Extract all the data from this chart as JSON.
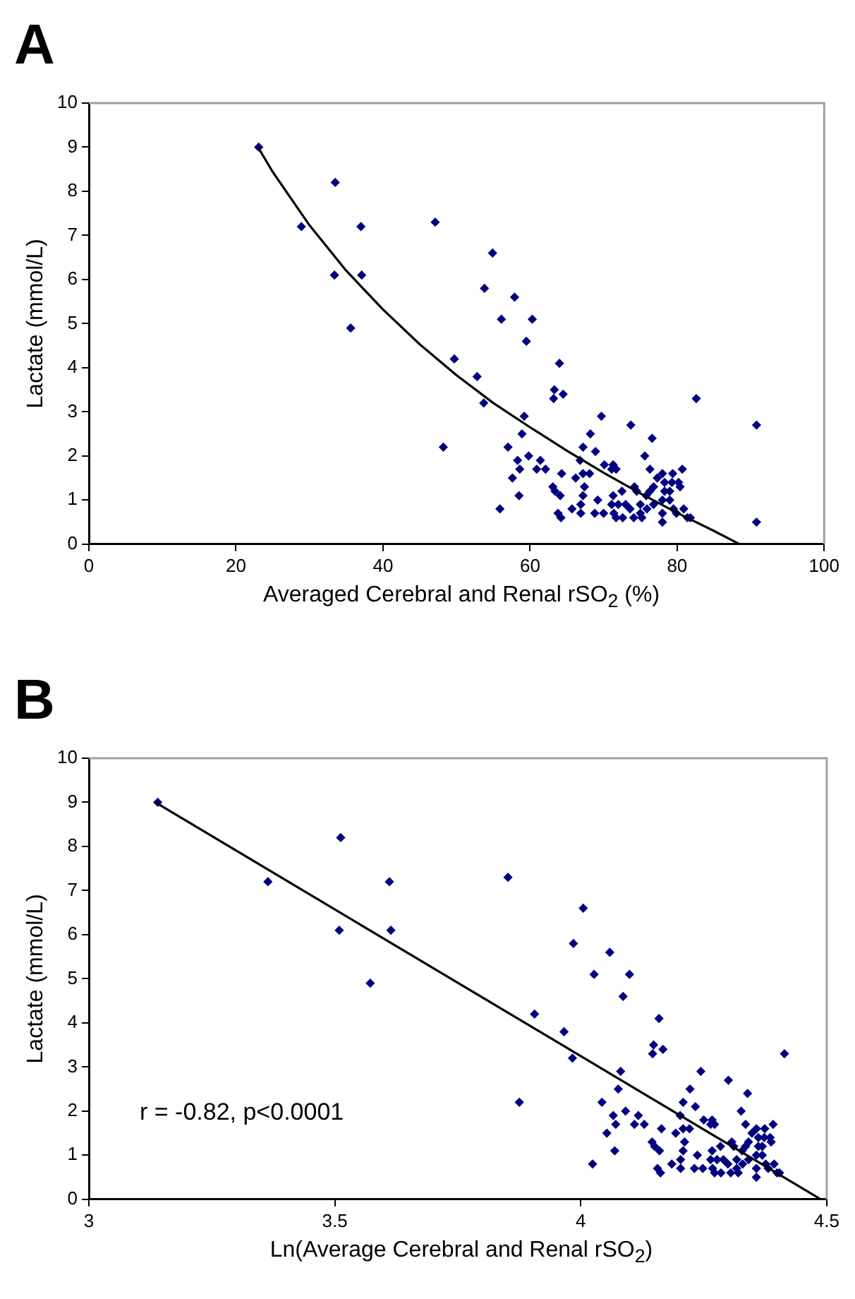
{
  "chart_data": [
    {
      "type": "scatter",
      "title": "A",
      "xlabel": "Averaged Cerebral and Renal rSO$_{2}$ (%)",
      "ylabel": "Lactate (mmol/L)",
      "xlim": [
        0,
        100
      ],
      "xticks": [
        0,
        20,
        40,
        60,
        80,
        100
      ],
      "ylim": [
        0,
        10
      ],
      "yticks": [
        0,
        1,
        2,
        3,
        4,
        5,
        6,
        7,
        8,
        9,
        10
      ],
      "marker": "diamond",
      "series": [
        {
          "type": "scatter",
          "color": "#000080",
          "x": [
            23.1,
            28.9,
            33.5,
            37.0,
            33.4,
            37.1,
            35.6,
            47.1,
            54.9,
            53.8,
            56.1,
            57.9,
            60.3,
            59.5,
            64.0,
            49.7,
            52.8,
            53.7,
            48.2,
            55.9,
            63.3,
            63.2,
            64.5,
            82.6,
            90.8,
            90.8,
            59.2,
            58.9,
            57.0,
            69.7,
            73.7,
            76.6,
            68.2,
            67.2,
            68.9,
            75.6,
            58.3,
            59.8,
            61.4,
            58.6,
            60.9,
            62.1,
            57.6,
            58.5,
            64.3,
            66.2,
            66.8,
            67.2,
            68.1,
            70.1,
            71.3,
            71.7,
            71.1,
            63.1,
            63.4,
            64.1,
            67.4,
            67.2,
            65.7,
            66.9,
            66.9,
            63.8,
            64.2,
            68.8,
            69.2,
            70.0,
            71.3,
            71.1,
            71.4,
            71.7,
            72.0,
            72.6,
            72.5,
            73.0,
            73.6,
            74.1,
            74.2,
            74.5,
            75.0,
            75.0,
            75.2,
            75.8,
            75.9,
            76.3,
            76.8,
            76.8,
            77.3,
            76.3,
            78.0,
            78.3,
            78.3,
            78.0,
            78.0,
            78.0,
            79.4,
            79.3,
            79.0,
            79.5,
            79.9,
            80.2,
            80.7,
            80.4,
            80.9,
            81.4,
            81.8,
            79.0
          ],
          "values": [
            9.0,
            7.2,
            8.2,
            7.2,
            6.1,
            6.1,
            4.9,
            7.3,
            6.6,
            5.8,
            5.1,
            5.6,
            5.1,
            4.6,
            4.1,
            4.2,
            3.8,
            3.2,
            2.2,
            0.8,
            3.5,
            3.3,
            3.4,
            3.3,
            2.7,
            0.5,
            2.9,
            2.5,
            2.2,
            2.9,
            2.7,
            2.4,
            2.5,
            2.2,
            2.1,
            2.0,
            1.9,
            2.0,
            1.9,
            1.7,
            1.7,
            1.7,
            1.5,
            1.1,
            1.6,
            1.5,
            1.9,
            1.6,
            1.6,
            1.8,
            1.8,
            1.7,
            1.7,
            1.3,
            1.2,
            1.1,
            1.3,
            1.1,
            0.8,
            0.9,
            0.7,
            0.7,
            0.6,
            0.7,
            1.0,
            0.7,
            1.1,
            0.9,
            0.7,
            0.6,
            0.9,
            0.6,
            1.2,
            0.9,
            0.8,
            0.6,
            1.3,
            1.2,
            0.9,
            0.7,
            0.6,
            1.1,
            0.8,
            1.2,
            1.3,
            0.9,
            1.5,
            1.7,
            1.6,
            1.4,
            1.2,
            1.0,
            0.7,
            0.5,
            1.6,
            1.4,
            1.2,
            0.8,
            0.7,
            1.4,
            1.7,
            1.3,
            0.8,
            0.6,
            0.6,
            1.0
          ]
        },
        {
          "type": "line",
          "marker": "none",
          "color": "#000000",
          "x": [
            23,
            25,
            30,
            35,
            40,
            45,
            50,
            55,
            60,
            65,
            70,
            75,
            80,
            85,
            88.5
          ],
          "values": [
            9.0,
            8.44,
            7.23,
            6.2,
            5.32,
            4.53,
            3.83,
            3.2,
            2.65,
            2.12,
            1.62,
            1.15,
            0.71,
            0.3,
            0
          ]
        }
      ]
    },
    {
      "type": "scatter",
      "title": "B",
      "xlabel": "Ln(Average Cerebral and Renal rSO$_{2}$)",
      "ylabel": "Lactate (mmol/L)",
      "xlim": [
        3,
        4.5
      ],
      "xticks": [
        3,
        3.5,
        4,
        4.5
      ],
      "ylim": [
        0,
        10
      ],
      "yticks": [
        0,
        1,
        2,
        3,
        4,
        5,
        6,
        7,
        8,
        9,
        10
      ],
      "marker": "diamond",
      "annotations": [
        "r = -0.82, p<0.0001"
      ],
      "series": [
        {
          "type": "scatter",
          "color": "#000080",
          "x": [
            3.14,
            3.364,
            3.512,
            3.611,
            3.509,
            3.614,
            3.572,
            3.852,
            4.005,
            3.985,
            4.027,
            4.059,
            4.099,
            4.086,
            4.159,
            3.906,
            3.966,
            3.983,
            3.875,
            4.024,
            4.148,
            4.146,
            4.167,
            4.414,
            4.081,
            4.076,
            4.043,
            4.244,
            4.3,
            4.339,
            4.222,
            4.208,
            4.233,
            4.326,
            4.066,
            4.091,
            4.117,
            4.071,
            4.109,
            4.129,
            4.053,
            4.069,
            4.164,
            4.193,
            4.202,
            4.208,
            4.221,
            4.25,
            4.267,
            4.272,
            4.264,
            4.145,
            4.15,
            4.16,
            4.211,
            4.208,
            4.185,
            4.203,
            4.203,
            4.156,
            4.162,
            4.231,
            4.237,
            4.248,
            4.267,
            4.264,
            4.268,
            4.272,
            4.277,
            4.285,
            4.284,
            4.29,
            4.299,
            4.305,
            4.307,
            4.311,
            4.317,
            4.317,
            4.32,
            4.328,
            4.329,
            4.335,
            4.341,
            4.341,
            4.348,
            4.335,
            4.357,
            4.361,
            4.361,
            4.357,
            4.357,
            4.357,
            4.374,
            4.373,
            4.369,
            4.376,
            4.381,
            4.385,
            4.391,
            4.387,
            4.393,
            4.399,
            4.404,
            4.369
          ],
          "values": [
            9.0,
            7.2,
            8.2,
            7.2,
            6.1,
            6.1,
            4.9,
            7.3,
            6.6,
            5.8,
            5.1,
            5.6,
            5.1,
            4.6,
            4.1,
            4.2,
            3.8,
            3.2,
            2.2,
            0.8,
            3.5,
            3.3,
            3.4,
            3.3,
            2.9,
            2.5,
            2.2,
            2.9,
            2.7,
            2.4,
            2.5,
            2.2,
            2.1,
            2.0,
            1.9,
            2.0,
            1.9,
            1.7,
            1.7,
            1.7,
            1.5,
            1.1,
            1.6,
            1.5,
            1.9,
            1.6,
            1.6,
            1.8,
            1.8,
            1.7,
            1.7,
            1.3,
            1.2,
            1.1,
            1.3,
            1.1,
            0.8,
            0.9,
            0.7,
            0.7,
            0.6,
            0.7,
            1.0,
            0.7,
            1.1,
            0.9,
            0.7,
            0.6,
            0.9,
            0.6,
            1.2,
            0.9,
            0.8,
            0.6,
            1.3,
            1.2,
            0.9,
            0.7,
            0.6,
            1.1,
            0.8,
            1.2,
            1.3,
            0.9,
            1.5,
            1.7,
            1.6,
            1.4,
            1.2,
            1.0,
            0.7,
            0.5,
            1.6,
            1.4,
            1.2,
            0.8,
            0.7,
            1.4,
            1.7,
            1.3,
            0.8,
            0.6,
            0.6,
            1.0
          ]
        },
        {
          "type": "line",
          "marker": "none",
          "color": "#000000",
          "x": [
            3.135,
            4.488
          ],
          "values": [
            9.0,
            0
          ]
        }
      ]
    }
  ]
}
